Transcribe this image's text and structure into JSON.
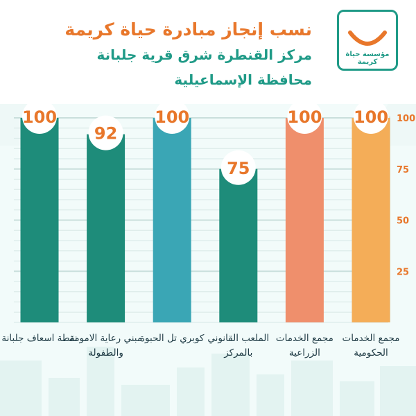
{
  "header": {
    "title_line1": "نسب إنجاز مبادرة حياة كريمة",
    "title_line2": "مركز القنطرة شرق قرية جلبانة",
    "title_line3": "محافظة الإسماعيلية"
  },
  "logo": {
    "text": "مؤسسة حياة كريمة",
    "colors": {
      "frame": "#1f9a87",
      "smile": "#e8772b"
    }
  },
  "colors": {
    "accent_orange": "#e8772b",
    "teal": "#1f9a87",
    "bar_dark_teal": "#1e8c7a",
    "bar_light_blue": "#3aa6b5",
    "bar_salmon": "#ef8f6c",
    "bar_yellow": "#f4ad58"
  },
  "chart_data": {
    "type": "bar",
    "categories": [
      "نقطة اسعاف جلبانة",
      "مبني رعاية الامومة والطفولة",
      "كوبري تل الحبوة",
      "الملعب القانوني بالمركز",
      "مجمع الخدمات الزراعية",
      "مجمع الخدمات الحكومية"
    ],
    "values": [
      100,
      92,
      100,
      75,
      100,
      100
    ],
    "data_labels": [
      "100",
      "92",
      "100",
      "75",
      "100",
      "100"
    ],
    "bar_colors": [
      "#1e8c7a",
      "#1e8c7a",
      "#3aa6b5",
      "#1e8c7a",
      "#ef8f6c",
      "#f4ad58"
    ],
    "ylim": [
      0,
      100
    ],
    "yticks": [
      25,
      50,
      75,
      100
    ],
    "y_axis_side": "right",
    "grid": true,
    "title": "",
    "xlabel": "",
    "ylabel": ""
  }
}
